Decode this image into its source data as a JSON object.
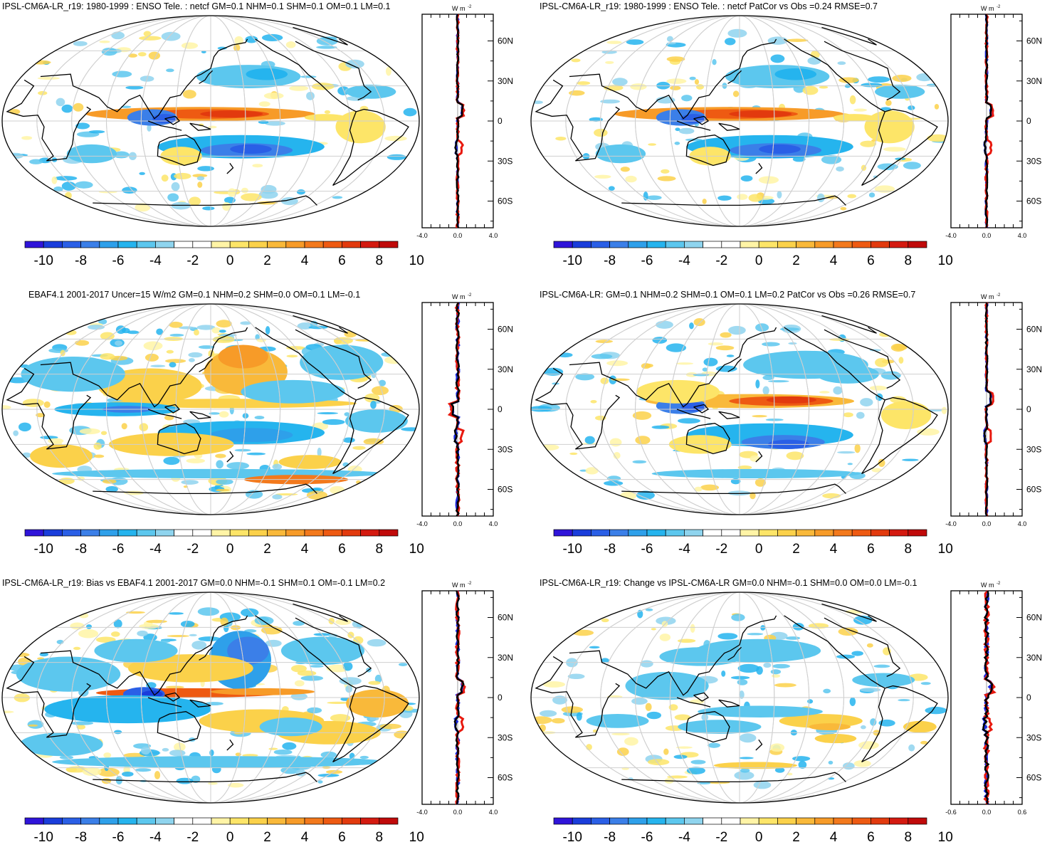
{
  "colorbar": {
    "colors": [
      "#2f14d9",
      "#1a3ddb",
      "#2a5fe6",
      "#3b7fe8",
      "#2ea0ea",
      "#25b4ee",
      "#5cc7ee",
      "#8fd4ee",
      "#ffffff",
      "#ffffff",
      "#fff4a6",
      "#fde568",
      "#fbd14a",
      "#f9b93a",
      "#f79b28",
      "#f3791c",
      "#ee5a12",
      "#e23a0e",
      "#d41a10",
      "#c00a0a"
    ],
    "labels": [
      "-10",
      "-8",
      "-6",
      "-4",
      "-2",
      "0",
      "2",
      "4",
      "6",
      "8",
      "10"
    ]
  },
  "land_color": "#000000",
  "grid_color": "#cfcfcf",
  "panels": [
    {
      "id": "model",
      "title": "IPSL-CM6A-LR_r19: 1980-1999 : ENSO Tele. : netcf GM=0.1 NHM=0.1 SHM=0.1 OM=0.1 LM=0.1",
      "zonal": {
        "unit": "W m",
        "unit_sup": "-2",
        "xticks": [
          "-4.0",
          "0.0",
          "4.0"
        ],
        "lat_ticks": [
          "60N",
          "30N",
          "0",
          "30S",
          "60S"
        ]
      }
    },
    {
      "id": "model-patcor",
      "title": "IPSL-CM6A-LR_r19: 1980-1999 : ENSO Tele. : netcf PatCor vs Obs =0.24 RMSE=0.7",
      "zonal": {
        "unit": "W m",
        "unit_sup": "-2",
        "xticks": [
          "-4.0",
          "0.0",
          "4.0"
        ],
        "lat_ticks": [
          "60N",
          "30N",
          "0",
          "30S",
          "60S"
        ]
      }
    },
    {
      "id": "obs",
      "title": "EBAF4.1 2001-2017 Uncer=15 W/m2 GM=0.1 NHM=0.2 SHM=0.0 OM=0.1 LM=-0.1",
      "zonal": {
        "unit": "W m",
        "unit_sup": "-2",
        "xticks": [
          "-4.0",
          "0.0",
          "4.0"
        ],
        "lat_ticks": [
          "60N",
          "30N",
          "0",
          "30S",
          "60S"
        ]
      }
    },
    {
      "id": "ref-model",
      "title": "IPSL-CM6A-LR: GM=0.1 NHM=0.2 SHM=0.1 OM=0.1 LM=0.2 PatCor vs Obs =0.26 RMSE=0.7",
      "zonal": {
        "unit": "W m",
        "unit_sup": "-2",
        "xticks": [
          "-4.0",
          "0.0",
          "4.0"
        ],
        "lat_ticks": [
          "60N",
          "30N",
          "0",
          "30S",
          "60S"
        ]
      }
    },
    {
      "id": "bias",
      "title": "IPSL-CM6A-LR_r19: Bias vs EBAF4.1 2001-2017 GM=0.0 NHM=-0.1 SHM=0.1 OM=-0.1 LM=0.2",
      "zonal": {
        "unit": "W m",
        "unit_sup": "-2",
        "xticks": [
          "-4.0",
          "0.0",
          "4.0"
        ],
        "lat_ticks": [
          "60N",
          "30N",
          "0",
          "30S",
          "60S"
        ]
      }
    },
    {
      "id": "change",
      "title": "IPSL-CM6A-LR_r19: Change vs IPSL-CM6A-LR GM=0.0 NHM=-0.1 SHM=0.0 OM=0.0 LM=-0.1",
      "zonal": {
        "unit": "W m",
        "unit_sup": "-2",
        "xticks": [
          "-0.6",
          "0.0",
          "0.6"
        ],
        "lat_ticks": [
          "60N",
          "30N",
          "0",
          "30S",
          "60S"
        ]
      }
    }
  ]
}
